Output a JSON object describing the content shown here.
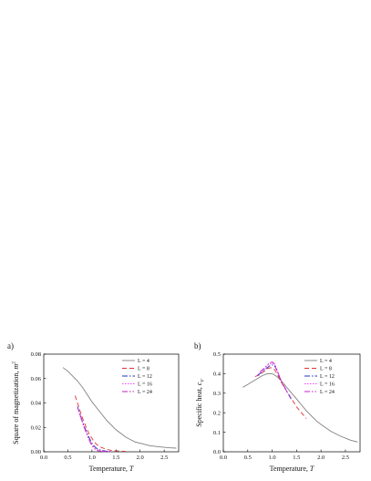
{
  "chart_data": [
    {
      "type": "line",
      "panel_label": "a)",
      "xlabel": "Temperature, T",
      "ylabel": "Square of magnetization, m²",
      "xlim": [
        0.0,
        2.8
      ],
      "ylim": [
        0.0,
        0.08
      ],
      "xticks": [
        "0.0",
        "0.5",
        "1.0",
        "1.5",
        "2.0",
        "2.5"
      ],
      "yticks": [
        "0.00",
        "0.02",
        "0.04",
        "0.06",
        "0.08"
      ],
      "legend_position": "top-right",
      "series": [
        {
          "name": "L = 4",
          "color": "#808080",
          "dash": "",
          "x": [
            0.4,
            0.5,
            0.6,
            0.7,
            0.8,
            0.9,
            1.0,
            1.1,
            1.2,
            1.3,
            1.4,
            1.5,
            1.6,
            1.7,
            1.8,
            1.9,
            2.0,
            2.2,
            2.4,
            2.6,
            2.75
          ],
          "y": [
            0.069,
            0.066,
            0.062,
            0.058,
            0.053,
            0.047,
            0.041,
            0.036,
            0.031,
            0.026,
            0.022,
            0.018,
            0.015,
            0.012,
            0.01,
            0.008,
            0.007,
            0.005,
            0.004,
            0.0033,
            0.003
          ]
        },
        {
          "name": "L = 8",
          "color": "#e03030",
          "dash": "5,3",
          "x": [
            0.65,
            0.7,
            0.75,
            0.8,
            0.85,
            0.9,
            0.95,
            1.0,
            1.05,
            1.1,
            1.15,
            1.2,
            1.3,
            1.4,
            1.5,
            1.6,
            1.7
          ],
          "y": [
            0.046,
            0.04,
            0.034,
            0.028,
            0.023,
            0.018,
            0.014,
            0.011,
            0.008,
            0.006,
            0.0045,
            0.0035,
            0.002,
            0.0012,
            0.0008,
            0.0005,
            0.0003
          ]
        },
        {
          "name": "L = 12",
          "color": "#2030c0",
          "dash": "6,2,1.5,2",
          "x": [
            0.7,
            0.75,
            0.8,
            0.85,
            0.9,
            0.95,
            1.0,
            1.05,
            1.1,
            1.15,
            1.2,
            1.3,
            1.4
          ],
          "y": [
            0.037,
            0.031,
            0.025,
            0.02,
            0.015,
            0.011,
            0.007,
            0.0045,
            0.0028,
            0.0018,
            0.0011,
            0.0005,
            0.0002
          ]
        },
        {
          "name": "L = 16",
          "color": "#ff40ff",
          "dash": "1.5,1.5",
          "x": [
            0.7,
            0.75,
            0.8,
            0.85,
            0.9,
            0.95,
            1.0,
            1.05,
            1.1,
            1.15,
            1.2,
            1.3,
            1.4
          ],
          "y": [
            0.036,
            0.03,
            0.024,
            0.019,
            0.014,
            0.0095,
            0.006,
            0.0035,
            0.002,
            0.0012,
            0.0007,
            0.0003,
            0.0001
          ]
        },
        {
          "name": "L = 24",
          "color": "#c020c0",
          "dash": "6,2,1.5,2,1.5,2",
          "x": [
            0.75,
            0.8,
            0.85,
            0.9,
            0.95,
            1.0,
            1.05,
            1.1,
            1.15,
            1.2,
            1.3
          ],
          "y": [
            0.031,
            0.025,
            0.019,
            0.014,
            0.009,
            0.005,
            0.0025,
            0.0012,
            0.0006,
            0.0003,
            0.0001
          ]
        }
      ]
    },
    {
      "type": "line",
      "panel_label": "b)",
      "xlabel": "Temperature, T",
      "ylabel": "Specific heat, c",
      "ylabel_sub": "V",
      "xlim": [
        0.0,
        2.8
      ],
      "ylim": [
        0.0,
        0.5
      ],
      "xticks": [
        "0.0",
        "0.5",
        "1.0",
        "1.5",
        "2.0",
        "2.5"
      ],
      "yticks": [
        "0.0",
        "0.1",
        "0.2",
        "0.3",
        "0.4",
        "0.5"
      ],
      "legend_position": "top-right",
      "series": [
        {
          "name": "L = 4",
          "color": "#808080",
          "dash": "",
          "x": [
            0.4,
            0.5,
            0.6,
            0.7,
            0.8,
            0.9,
            1.0,
            1.1,
            1.2,
            1.3,
            1.4,
            1.5,
            1.6,
            1.7,
            1.8,
            1.9,
            2.0,
            2.2,
            2.4,
            2.6,
            2.75
          ],
          "y": [
            0.33,
            0.345,
            0.36,
            0.375,
            0.39,
            0.4,
            0.4,
            0.385,
            0.36,
            0.33,
            0.3,
            0.27,
            0.24,
            0.21,
            0.185,
            0.16,
            0.14,
            0.105,
            0.08,
            0.06,
            0.05
          ]
        },
        {
          "name": "L = 8",
          "color": "#e03030",
          "dash": "5,3",
          "x": [
            0.65,
            0.7,
            0.75,
            0.8,
            0.85,
            0.9,
            0.95,
            1.0,
            1.05,
            1.1,
            1.15,
            1.2,
            1.3,
            1.4,
            1.5,
            1.6,
            1.7
          ],
          "y": [
            0.385,
            0.39,
            0.395,
            0.405,
            0.415,
            0.425,
            0.43,
            0.43,
            0.42,
            0.4,
            0.375,
            0.35,
            0.31,
            0.27,
            0.23,
            0.2,
            0.17
          ]
        },
        {
          "name": "L = 12",
          "color": "#2030c0",
          "dash": "6,2,1.5,2",
          "x": [
            0.7,
            0.75,
            0.8,
            0.85,
            0.9,
            0.95,
            1.0,
            1.05,
            1.1,
            1.15,
            1.2,
            1.3,
            1.4
          ],
          "y": [
            0.39,
            0.4,
            0.41,
            0.42,
            0.43,
            0.44,
            0.445,
            0.44,
            0.415,
            0.385,
            0.355,
            0.31,
            0.265
          ]
        },
        {
          "name": "L = 16",
          "color": "#ff40ff",
          "dash": "1.5,1.5",
          "x": [
            0.7,
            0.75,
            0.8,
            0.85,
            0.9,
            0.95,
            1.0,
            1.05,
            1.1,
            1.15,
            1.2,
            1.3,
            1.4
          ],
          "y": [
            0.395,
            0.405,
            0.415,
            0.425,
            0.44,
            0.45,
            0.455,
            0.445,
            0.415,
            0.385,
            0.355,
            0.31,
            0.27
          ]
        },
        {
          "name": "L = 24",
          "color": "#c020c0",
          "dash": "6,2,1.5,2,1.5,2",
          "x": [
            0.75,
            0.8,
            0.85,
            0.9,
            0.95,
            1.0,
            1.05,
            1.1,
            1.15,
            1.2,
            1.3
          ],
          "y": [
            0.41,
            0.42,
            0.43,
            0.445,
            0.455,
            0.46,
            0.45,
            0.42,
            0.385,
            0.355,
            0.31
          ]
        }
      ]
    }
  ]
}
